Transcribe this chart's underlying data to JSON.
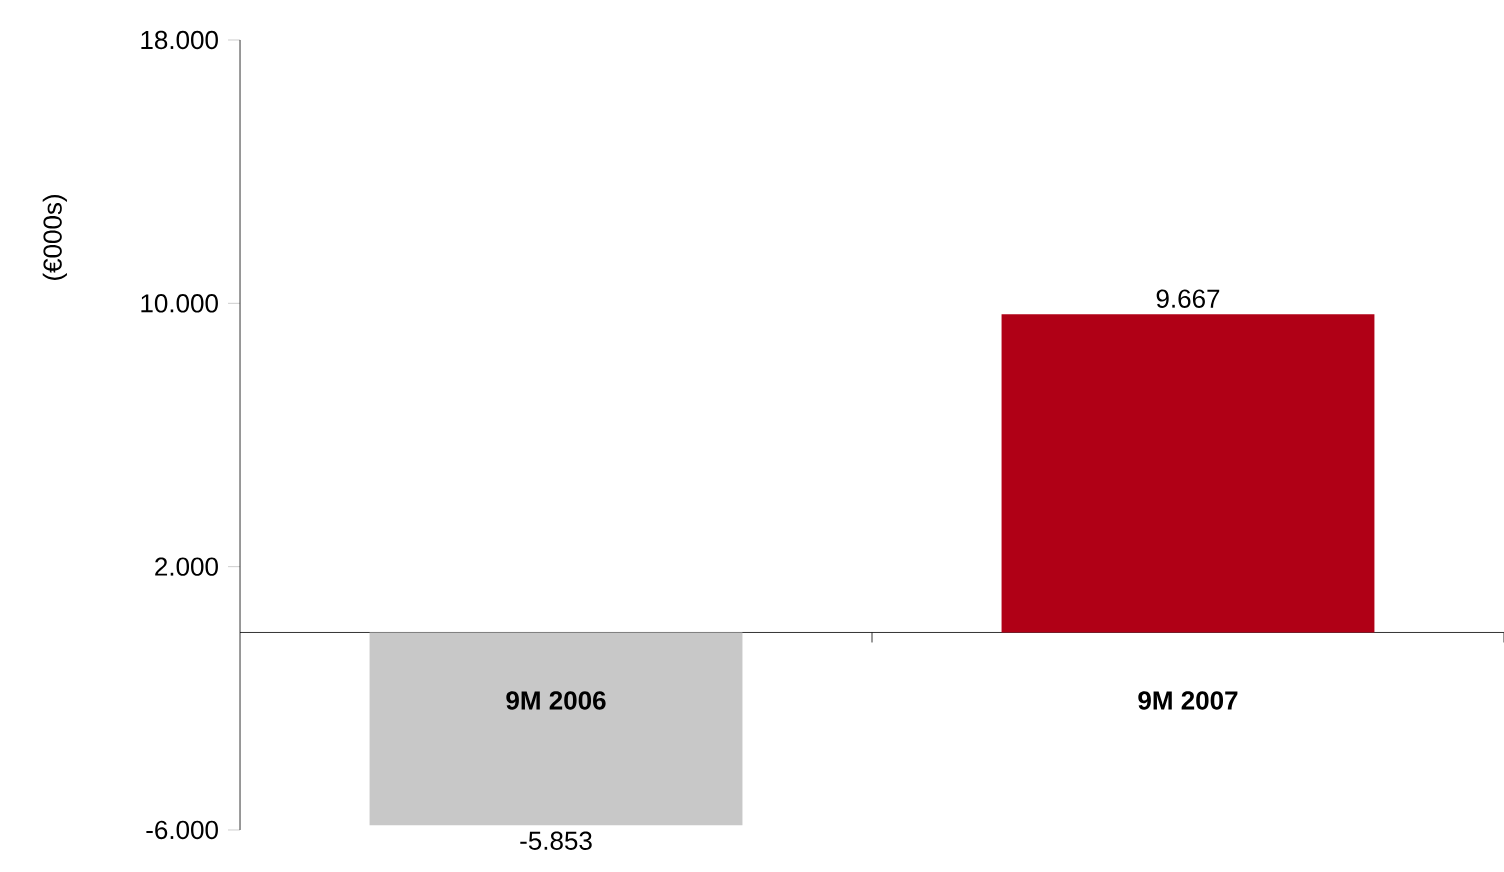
{
  "chart_data": {
    "type": "bar",
    "ylabel": "(€000s)",
    "categories": [
      "9M 2006",
      "9M 2007"
    ],
    "values": [
      -5853,
      9667
    ],
    "colors": [
      "#c8c8c8",
      "#b00016"
    ],
    "value_labels": [
      "-5.853",
      "9.667"
    ],
    "ylim": [
      -6000,
      18000
    ],
    "yticks": [
      {
        "value": -6000,
        "label": "-6.000"
      },
      {
        "value": 2000,
        "label": "2.000"
      },
      {
        "value": 10000,
        "label": "10.000"
      },
      {
        "value": 18000,
        "label": "18.000"
      }
    ]
  }
}
